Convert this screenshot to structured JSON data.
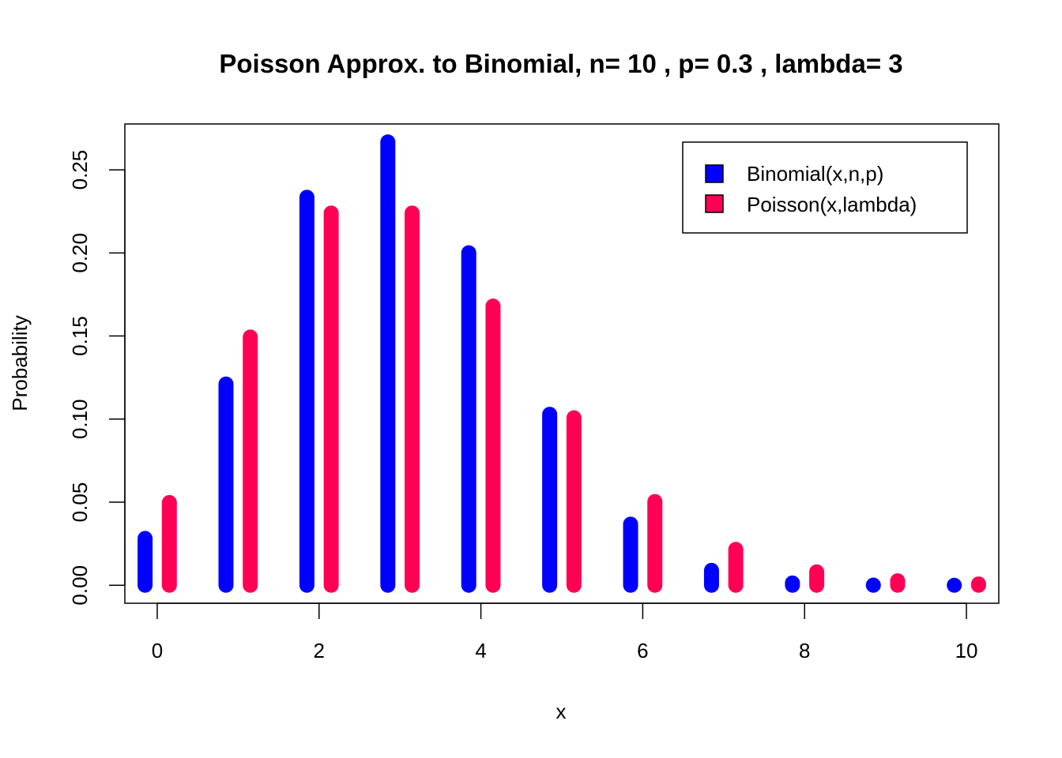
{
  "chart_data": {
    "type": "bar",
    "title": "Poisson Approx. to Binomial, n= 10 , p= 0.3 , lambda= 3",
    "xlabel": "x",
    "ylabel": "Probability",
    "x": [
      0,
      1,
      2,
      3,
      4,
      5,
      6,
      7,
      8,
      9,
      10
    ],
    "x_ticks": [
      "0",
      "2",
      "4",
      "6",
      "8",
      "10"
    ],
    "y_ticks": [
      "0.00",
      "0.05",
      "0.10",
      "0.15",
      "0.20",
      "0.25"
    ],
    "xlim": [
      -0.4,
      10.4
    ],
    "ylim": [
      -0.0108,
      0.2776
    ],
    "grid": false,
    "legend_position": "top-right",
    "series": [
      {
        "name": "Binomial(x,n,p)",
        "color": "#0000ff",
        "values": [
          0.0282,
          0.1211,
          0.2335,
          0.2668,
          0.2001,
          0.1029,
          0.0368,
          0.009,
          0.0014,
          0.0001,
          0.0
        ]
      },
      {
        "name": "Poisson(x,lambda)",
        "color": "#ff0055",
        "values": [
          0.0498,
          0.1494,
          0.224,
          0.224,
          0.168,
          0.1008,
          0.0504,
          0.0216,
          0.0081,
          0.0027,
          0.0008
        ]
      }
    ]
  }
}
